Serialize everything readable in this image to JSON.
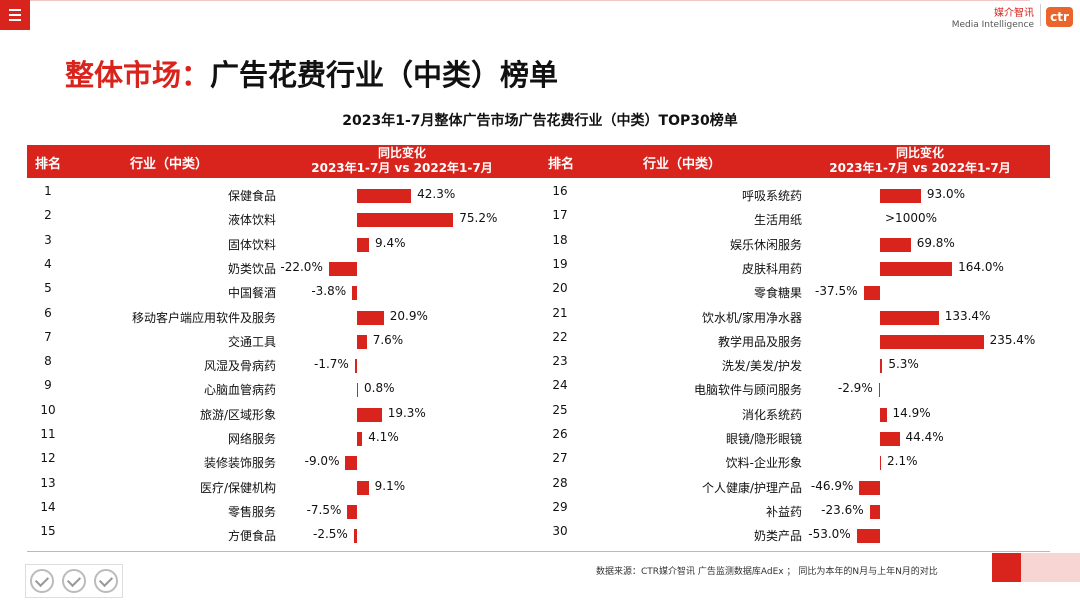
{
  "header": {
    "brand_cn": "媒介智讯",
    "brand_en": "Media Intelligence",
    "logo_text": "ctr"
  },
  "page_title": {
    "highlight": "整体市场：",
    "rest": "广告花费行业（中类）榜单"
  },
  "table_title": "2023年1-7月整体广告市场广告花费行业（中类）TOP30榜单",
  "columns": {
    "rank": "排名",
    "industry": "行业（中类）",
    "change_line1": "同比变化",
    "change_line2": "2023年1-7月 vs 2022年1-7月"
  },
  "rows": [
    {
      "rank": "1",
      "industry": "保健食品",
      "value": 42.3,
      "label": "42.3%"
    },
    {
      "rank": "2",
      "industry": "液体饮料",
      "value": 75.2,
      "label": "75.2%"
    },
    {
      "rank": "3",
      "industry": "固体饮料",
      "value": 9.4,
      "label": "9.4%"
    },
    {
      "rank": "4",
      "industry": "奶类饮品",
      "value": -22.0,
      "label": "-22.0%"
    },
    {
      "rank": "5",
      "industry": "中国餐酒",
      "value": -3.8,
      "label": "-3.8%"
    },
    {
      "rank": "6",
      "industry": "移动客户端应用软件及服务",
      "value": 20.9,
      "label": "20.9%"
    },
    {
      "rank": "7",
      "industry": "交通工具",
      "value": 7.6,
      "label": "7.6%"
    },
    {
      "rank": "8",
      "industry": "风湿及骨病药",
      "value": -1.7,
      "label": "-1.7%"
    },
    {
      "rank": "9",
      "industry": "心脑血管病药",
      "value": 0.8,
      "label": "0.8%"
    },
    {
      "rank": "10",
      "industry": "旅游/区域形象",
      "value": 19.3,
      "label": "19.3%"
    },
    {
      "rank": "11",
      "industry": "网络服务",
      "value": 4.1,
      "label": "4.1%"
    },
    {
      "rank": "12",
      "industry": "装修装饰服务",
      "value": -9.0,
      "label": "-9.0%"
    },
    {
      "rank": "13",
      "industry": "医疗/保健机构",
      "value": 9.1,
      "label": "9.1%"
    },
    {
      "rank": "14",
      "industry": "零售服务",
      "value": -7.5,
      "label": "-7.5%"
    },
    {
      "rank": "15",
      "industry": "方便食品",
      "value": -2.5,
      "label": "-2.5%"
    },
    {
      "rank": "16",
      "industry": "呼吸系统药",
      "value": 93.0,
      "label": "93.0%"
    },
    {
      "rank": "17",
      "industry": "生活用纸",
      "value": null,
      "label": ">1000%"
    },
    {
      "rank": "18",
      "industry": "娱乐休闲服务",
      "value": 69.8,
      "label": "69.8%"
    },
    {
      "rank": "19",
      "industry": "皮肤科用药",
      "value": 164.0,
      "label": "164.0%"
    },
    {
      "rank": "20",
      "industry": "零食糖果",
      "value": -37.5,
      "label": "-37.5%"
    },
    {
      "rank": "21",
      "industry": "饮水机/家用净水器",
      "value": 133.4,
      "label": "133.4%"
    },
    {
      "rank": "22",
      "industry": "教学用品及服务",
      "value": 235.4,
      "label": "235.4%"
    },
    {
      "rank": "23",
      "industry": "洗发/美发/护发",
      "value": 5.3,
      "label": "5.3%"
    },
    {
      "rank": "24",
      "industry": "电脑软件与顾问服务",
      "value": -2.9,
      "label": "-2.9%"
    },
    {
      "rank": "25",
      "industry": "消化系统药",
      "value": 14.9,
      "label": "14.9%"
    },
    {
      "rank": "26",
      "industry": "眼镜/隐形眼镜",
      "value": 44.4,
      "label": "44.4%"
    },
    {
      "rank": "27",
      "industry": "饮料-企业形象",
      "value": 2.1,
      "label": "2.1%"
    },
    {
      "rank": "28",
      "industry": "个人健康/护理产品",
      "value": -46.9,
      "label": "-46.9%"
    },
    {
      "rank": "29",
      "industry": "补益药",
      "value": -23.6,
      "label": "-23.6%"
    },
    {
      "rank": "30",
      "industry": "奶类产品",
      "value": -53.0,
      "label": "-53.0%"
    }
  ],
  "source_text": "数据来源：CTR媒介智讯 广告监测数据库AdEx ；  同比为本年的N月与上年N月的对比",
  "colors": {
    "accent": "#d9231d",
    "accent_light": "#f7d5d3",
    "logo": "#e9652b"
  },
  "icons": [
    "menu-icon",
    "certification-seal-icon"
  ]
}
